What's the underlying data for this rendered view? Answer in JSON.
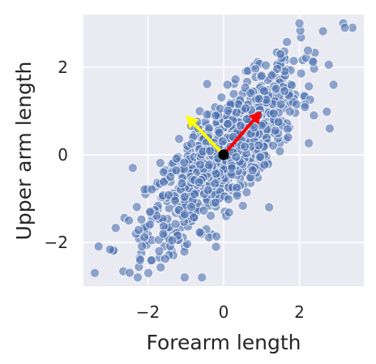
{
  "chart_data": {
    "type": "scatter",
    "xlabel": "Forearm length",
    "ylabel": "Upper arm length",
    "xlim": [
      -3.7,
      3.7
    ],
    "ylim": [
      -3.0,
      3.2
    ],
    "xticks": [
      {
        "value": -2,
        "label": "−2"
      },
      {
        "value": 0,
        "label": "0"
      },
      {
        "value": 2,
        "label": "2"
      }
    ],
    "yticks": [
      {
        "value": -2,
        "label": "−2"
      },
      {
        "value": 0,
        "label": "0"
      },
      {
        "value": 2,
        "label": "2"
      }
    ],
    "grid": true,
    "background": "#eaeaf2",
    "point_color": "#4c72b0",
    "point_count": 1000,
    "correlation": 0.8,
    "sample_points": [
      [
        -3.4,
        -2.7
      ],
      [
        -2.4,
        -0.3
      ],
      [
        -2.5,
        -1.5
      ],
      [
        -2.2,
        -2.4
      ],
      [
        3.4,
        2.9
      ],
      [
        3.2,
        2.9
      ],
      [
        2.0,
        3.0
      ],
      [
        1.5,
        2.3
      ],
      [
        2.9,
        1.6
      ],
      [
        2.8,
        0.6
      ],
      [
        1.7,
        0.4
      ],
      [
        1.2,
        -1.2
      ],
      [
        -0.2,
        -2.1
      ],
      [
        -1.7,
        -2.2
      ],
      [
        0.1,
        1.6
      ]
    ],
    "origin": [
      0,
      0
    ],
    "vectors": [
      {
        "color": "#ff0000",
        "dx": 1.0,
        "dy": 1.0
      },
      {
        "color": "#ffff00",
        "dx": -1.0,
        "dy": 0.9
      }
    ]
  }
}
